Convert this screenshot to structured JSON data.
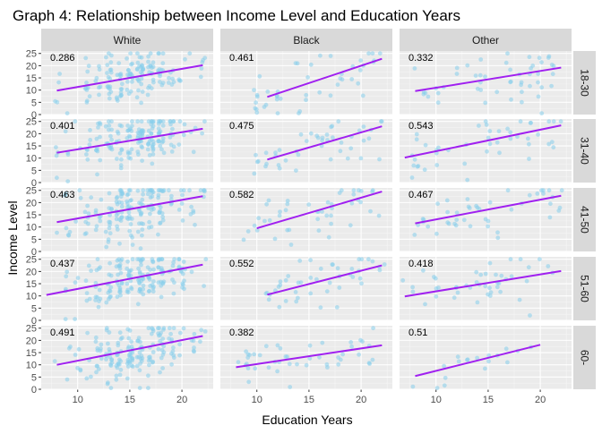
{
  "chart_data": {
    "type": "scatter",
    "title": "Graph 4: Relationship between Income Level and Education Years",
    "xlabel": "Education Years",
    "ylabel": "Income Level",
    "xlim": [
      6.5,
      23
    ],
    "ylim": [
      0,
      26
    ],
    "x_ticks": [
      10,
      15,
      20
    ],
    "y_ticks": [
      0,
      5,
      10,
      15,
      20,
      25
    ],
    "grid": true,
    "columns": [
      "White",
      "Black",
      "Other"
    ],
    "rows": [
      "18-30",
      "31-40",
      "41-50",
      "51-60",
      "60-"
    ],
    "point_color": "#87CEEB",
    "line_color": "#A020F0",
    "panel_bg": "#EBEBEB",
    "strip_bg": "#D9D9D9",
    "panels": [
      {
        "column": "White",
        "row": "18-30",
        "r": "0.286",
        "fit": [
          [
            8,
            9.8
          ],
          [
            22,
            20.2
          ]
        ],
        "n": 150,
        "xrange": [
          8,
          22
        ]
      },
      {
        "column": "Black",
        "row": "18-30",
        "r": "0.461",
        "fit": [
          [
            11,
            7.2
          ],
          [
            22,
            22.8
          ]
        ],
        "n": 45,
        "xrange": [
          10,
          22
        ]
      },
      {
        "column": "Other",
        "row": "18-30",
        "r": "0.332",
        "fit": [
          [
            8,
            9.6
          ],
          [
            22,
            19.2
          ]
        ],
        "n": 50,
        "xrange": [
          8,
          22
        ]
      },
      {
        "column": "White",
        "row": "31-40",
        "r": "0.401",
        "fit": [
          [
            8,
            12.2
          ],
          [
            22,
            22.0
          ]
        ],
        "n": 170,
        "xrange": [
          8,
          22
        ]
      },
      {
        "column": "Black",
        "row": "31-40",
        "r": "0.475",
        "fit": [
          [
            11,
            9.4
          ],
          [
            22,
            23.0
          ]
        ],
        "n": 45,
        "xrange": [
          10,
          22
        ]
      },
      {
        "column": "Other",
        "row": "31-40",
        "r": "0.543",
        "fit": [
          [
            7,
            10.2
          ],
          [
            22,
            23.4
          ]
        ],
        "n": 45,
        "xrange": [
          7,
          22
        ]
      },
      {
        "column": "White",
        "row": "41-50",
        "r": "0.463",
        "fit": [
          [
            8,
            12.0
          ],
          [
            22,
            22.6
          ]
        ],
        "n": 170,
        "xrange": [
          8,
          22
        ]
      },
      {
        "column": "Black",
        "row": "41-50",
        "r": "0.582",
        "fit": [
          [
            10,
            9.5
          ],
          [
            22,
            24.5
          ]
        ],
        "n": 45,
        "xrange": [
          9,
          22
        ]
      },
      {
        "column": "Other",
        "row": "41-50",
        "r": "0.467",
        "fit": [
          [
            8,
            11.5
          ],
          [
            22,
            22.8
          ]
        ],
        "n": 45,
        "xrange": [
          8,
          22
        ]
      },
      {
        "column": "White",
        "row": "51-60",
        "r": "0.437",
        "fit": [
          [
            7,
            10.4
          ],
          [
            22,
            22.8
          ]
        ],
        "n": 170,
        "xrange": [
          7,
          22
        ]
      },
      {
        "column": "Black",
        "row": "51-60",
        "r": "0.552",
        "fit": [
          [
            11,
            10.5
          ],
          [
            22,
            22.5
          ]
        ],
        "n": 45,
        "xrange": [
          11,
          22
        ]
      },
      {
        "column": "Other",
        "row": "51-60",
        "r": "0.418",
        "fit": [
          [
            7,
            9.8
          ],
          [
            22,
            20.2
          ]
        ],
        "n": 45,
        "xrange": [
          7,
          22
        ]
      },
      {
        "column": "White",
        "row": "60-",
        "r": "0.491",
        "fit": [
          [
            8,
            10.0
          ],
          [
            22,
            21.8
          ]
        ],
        "n": 170,
        "xrange": [
          8,
          22
        ]
      },
      {
        "column": "Black",
        "row": "60-",
        "r": "0.382",
        "fit": [
          [
            8,
            9.0
          ],
          [
            22,
            18.0
          ]
        ],
        "n": 45,
        "xrange": [
          8,
          22
        ]
      },
      {
        "column": "Other",
        "row": "60-",
        "r": "0.51",
        "fit": [
          [
            8,
            5.4
          ],
          [
            20,
            18.2
          ]
        ],
        "n": 18,
        "xrange": [
          8,
          20
        ]
      }
    ]
  }
}
